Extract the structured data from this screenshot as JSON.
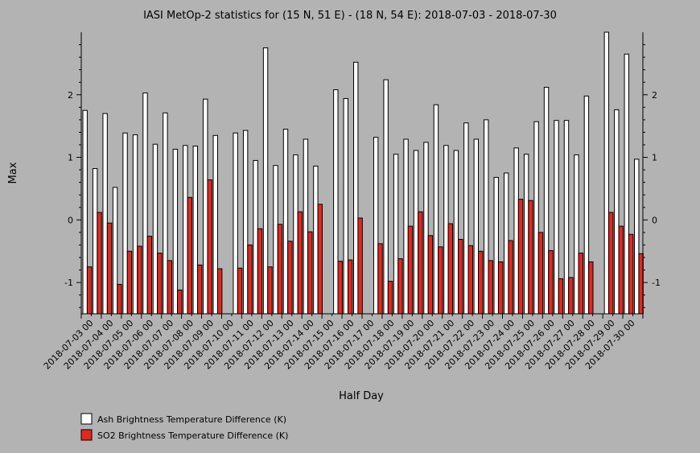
{
  "chart_data": {
    "type": "bar",
    "title": "IASI MetOp-2 statistics for (15 N, 51 E) - (18 N, 54 E): 2018-07-03 - 2018-07-30",
    "xlabel": "Half Day",
    "ylabel": "Max",
    "ylim": [
      -1.5,
      3.0
    ],
    "yticks": [
      -1,
      0,
      1,
      2
    ],
    "grid": false,
    "legend_position": "bottom-left",
    "x_tick_labels": [
      "2018-07-03 00",
      "2018-07-04 00",
      "2018-07-05 00",
      "2018-07-06 00",
      "2018-07-07 00",
      "2018-07-08 00",
      "2018-07-09 00",
      "2018-07-10 00",
      "2018-07-11 00",
      "2018-07-12 00",
      "2018-07-13 00",
      "2018-07-14 00",
      "2018-07-15 00",
      "2018-07-16 00",
      "2018-07-17 00",
      "2018-07-18 00",
      "2018-07-19 00",
      "2018-07-20 00",
      "2018-07-21 00",
      "2018-07-22 00",
      "2018-07-23 00",
      "2018-07-24 00",
      "2018-07-25 00",
      "2018-07-26 00",
      "2018-07-27 00",
      "2018-07-28 00",
      "2018-07-29 00",
      "2018-07-30 00"
    ],
    "series": [
      {
        "name": "Ash Brightness Temperature Difference (K)",
        "color": "#ffffff",
        "values": [
          1.75,
          0.82,
          1.7,
          0.52,
          1.39,
          1.36,
          2.03,
          1.21,
          1.71,
          1.13,
          1.19,
          1.18,
          1.93,
          1.35,
          null,
          1.39,
          1.43,
          0.95,
          2.75,
          0.87,
          1.45,
          1.04,
          1.29,
          0.86,
          null,
          2.08,
          1.94,
          2.52,
          null,
          1.32,
          2.24,
          1.05,
          1.29,
          1.11,
          1.24,
          1.84,
          1.19,
          1.11,
          1.55,
          1.29,
          1.6,
          0.68,
          0.75,
          1.15,
          1.05,
          1.57,
          2.12,
          1.59,
          1.59,
          1.04,
          1.98,
          null,
          3.0,
          1.76,
          2.65,
          0.97
        ]
      },
      {
        "name": "SO2 Brightness Temperature Difference (K)",
        "color": "#e5281f",
        "values": [
          -0.75,
          0.12,
          -0.05,
          -1.03,
          -0.5,
          -0.42,
          -0.26,
          -0.53,
          -0.65,
          -1.12,
          0.36,
          -0.72,
          0.64,
          -0.78,
          null,
          -0.77,
          -0.4,
          -0.14,
          -0.75,
          -0.07,
          -0.34,
          0.13,
          -0.19,
          0.25,
          null,
          -0.66,
          -0.64,
          0.03,
          null,
          -0.38,
          -0.98,
          -0.62,
          -0.1,
          0.13,
          -0.25,
          -0.43,
          -0.06,
          -0.31,
          -0.41,
          -0.5,
          -0.65,
          -0.67,
          -0.33,
          0.33,
          0.31,
          -0.2,
          -0.49,
          -0.94,
          -0.92,
          -0.53,
          -0.67,
          null,
          0.12,
          -0.1,
          -0.23,
          -0.54
        ]
      }
    ]
  }
}
